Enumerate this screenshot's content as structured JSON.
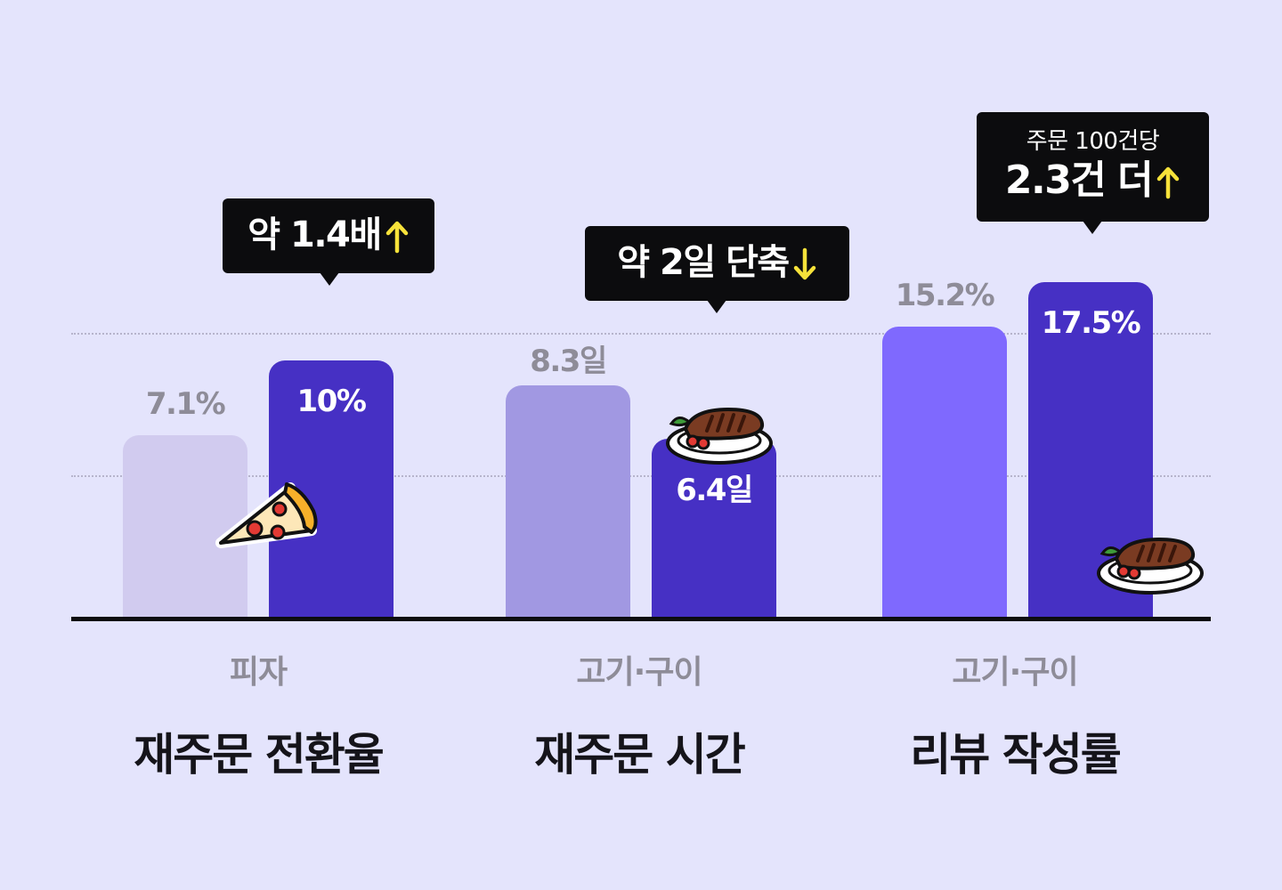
{
  "colors": {
    "background": "#e4e4fc",
    "baseline_pizza": "#d1cbef",
    "baseline_meat_time": "#a198e2",
    "baseline_review": "#7f69fe",
    "highlight": "#4630c4",
    "callout_bg": "#0c0c0e",
    "arrow": "#f7e23a"
  },
  "chart_data": [
    {
      "type": "bar",
      "category": "피자",
      "metric": "재주문 전환율",
      "values": [
        7.1,
        10
      ],
      "value_labels": [
        "7.1%",
        "10%"
      ],
      "callout": {
        "text": "약 1.4배",
        "arrow": "up"
      },
      "sticker_icon": "pizza-sticker-icon"
    },
    {
      "type": "bar",
      "category": "고기·구이",
      "metric": "재주문 시간",
      "values": [
        8.3,
        6.4
      ],
      "value_labels": [
        "8.3일",
        "6.4일"
      ],
      "callout": {
        "text": "약 2일 단축",
        "arrow": "down"
      },
      "sticker_icon": "steak-plate-sticker-icon"
    },
    {
      "type": "bar",
      "category": "고기·구이",
      "metric": "리뷰 작성률",
      "values": [
        15.2,
        17.5
      ],
      "value_labels": [
        "15.2%",
        "17.5%"
      ],
      "callout": {
        "subtext": "주문 100건당",
        "text": "2.3건 더",
        "arrow": "up"
      },
      "sticker_icon": "steak-plate-sticker-icon"
    }
  ]
}
